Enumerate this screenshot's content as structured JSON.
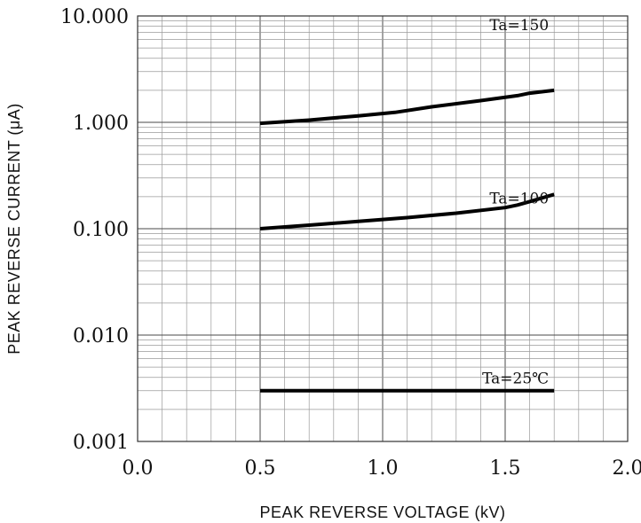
{
  "chart_data": {
    "type": "line",
    "title": "",
    "xlabel": "PEAK  REVERSE  VOLTAGE (kV)",
    "ylabel": "PEAK REVERSE  CURRENT (μA)",
    "xlim": [
      0.0,
      2.0
    ],
    "ylim": [
      0.001,
      10.0
    ],
    "y_scale": "log",
    "grid": true,
    "x_ticks": [
      {
        "value": 0.0,
        "label": "0.0"
      },
      {
        "value": 0.5,
        "label": "0.5"
      },
      {
        "value": 1.0,
        "label": "1.0"
      },
      {
        "value": 1.5,
        "label": "1.5"
      },
      {
        "value": 2.0,
        "label": "2.0"
      }
    ],
    "y_ticks": [
      {
        "value": 10,
        "label": "10.000"
      },
      {
        "value": 1,
        "label": "1.000"
      },
      {
        "value": 0.1,
        "label": "0.100"
      },
      {
        "value": 0.01,
        "label": "0.010"
      },
      {
        "value": 0.001,
        "label": "0.001"
      }
    ],
    "series": [
      {
        "name": "Ta=150",
        "x": [
          0.5,
          0.7,
          0.9,
          1.05,
          1.2,
          1.4,
          1.55,
          1.6,
          1.7
        ],
        "y": [
          0.98,
          1.05,
          1.15,
          1.24,
          1.4,
          1.6,
          1.78,
          1.88,
          2.0
        ]
      },
      {
        "name": "Ta=100",
        "x": [
          0.5,
          0.7,
          0.9,
          1.1,
          1.3,
          1.5,
          1.55,
          1.6,
          1.7
        ],
        "y": [
          0.1,
          0.108,
          0.117,
          0.127,
          0.14,
          0.158,
          0.167,
          0.18,
          0.21
        ]
      },
      {
        "name": "Ta=25℃",
        "x": [
          0.5,
          1.7
        ],
        "y": [
          0.003,
          0.003
        ]
      }
    ]
  }
}
